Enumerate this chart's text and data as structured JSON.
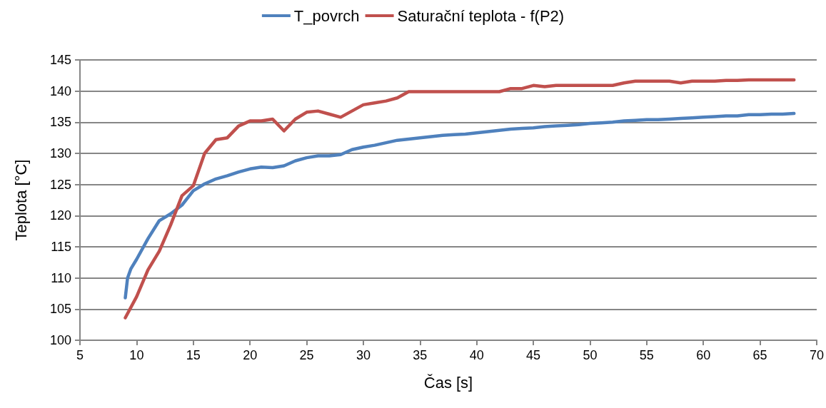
{
  "chart_data": {
    "type": "line",
    "xlabel": "Čas [s]",
    "ylabel": "Teplota [°C]",
    "xlim": [
      5,
      70
    ],
    "xticks": [
      5,
      10,
      15,
      20,
      25,
      30,
      35,
      40,
      45,
      50,
      55,
      60,
      65,
      70
    ],
    "ylim": [
      100,
      145
    ],
    "yticks": [
      100,
      105,
      110,
      115,
      120,
      125,
      130,
      135,
      140,
      145
    ],
    "grid": "y",
    "legend": "top",
    "marker": "none",
    "line_style": "solid",
    "series": [
      {
        "name": "T_povrch",
        "color": "#4f81bd",
        "x": [
          9,
          9.2,
          9.5,
          10,
          11,
          12,
          13,
          14,
          15,
          16,
          17,
          18,
          19,
          20,
          21,
          22,
          23,
          24,
          25,
          26,
          27,
          28,
          29,
          30,
          31,
          32,
          33,
          34,
          35,
          36,
          37,
          38,
          39,
          40,
          41,
          42,
          43,
          44,
          45,
          46,
          47,
          48,
          49,
          50,
          51,
          52,
          53,
          54,
          55,
          56,
          57,
          58,
          59,
          60,
          61,
          62,
          63,
          64,
          65,
          66,
          67,
          68
        ],
        "values": [
          106.8,
          110,
          111.5,
          113,
          116.3,
          119.2,
          120.3,
          121.7,
          124,
          125.1,
          125.9,
          126.4,
          127,
          127.5,
          127.8,
          127.7,
          128,
          128.8,
          129.3,
          129.6,
          129.6,
          129.8,
          130.6,
          131,
          131.3,
          131.7,
          132.1,
          132.3,
          132.5,
          132.7,
          132.9,
          133,
          133.1,
          133.3,
          133.5,
          133.7,
          133.9,
          134,
          134.1,
          134.3,
          134.4,
          134.5,
          134.6,
          134.8,
          134.9,
          135,
          135.2,
          135.3,
          135.4,
          135.4,
          135.5,
          135.6,
          135.7,
          135.8,
          135.9,
          136,
          136,
          136.2,
          136.2,
          136.3,
          136.3,
          136.4
        ]
      },
      {
        "name": "Saturační teplota - f(P2)",
        "color": "#c0504d",
        "x": [
          9,
          10,
          11,
          12,
          13,
          14,
          15,
          16,
          17,
          18,
          19,
          20,
          21,
          22,
          23,
          24,
          25,
          26,
          27,
          28,
          29,
          30,
          31,
          32,
          33,
          34,
          35,
          36,
          37,
          38,
          39,
          40,
          41,
          42,
          43,
          44,
          45,
          46,
          47,
          48,
          49,
          50,
          51,
          52,
          53,
          54,
          55,
          56,
          57,
          58,
          59,
          60,
          61,
          62,
          63,
          64,
          65,
          66,
          67,
          68
        ],
        "values": [
          103.6,
          107,
          111.3,
          114.3,
          118.5,
          123.2,
          124.8,
          130,
          132.2,
          132.5,
          134.4,
          135.2,
          135.2,
          135.5,
          133.6,
          135.5,
          136.6,
          136.8,
          136.3,
          135.8,
          136.8,
          137.8,
          138.1,
          138.4,
          138.9,
          139.9,
          139.9,
          139.9,
          139.9,
          139.9,
          139.9,
          139.9,
          139.9,
          139.9,
          140.4,
          140.4,
          140.9,
          140.7,
          140.9,
          140.9,
          140.9,
          140.9,
          140.9,
          140.9,
          141.3,
          141.6,
          141.6,
          141.6,
          141.6,
          141.3,
          141.6,
          141.6,
          141.6,
          141.7,
          141.7,
          141.8,
          141.8,
          141.8,
          141.8,
          141.8
        ]
      }
    ]
  }
}
